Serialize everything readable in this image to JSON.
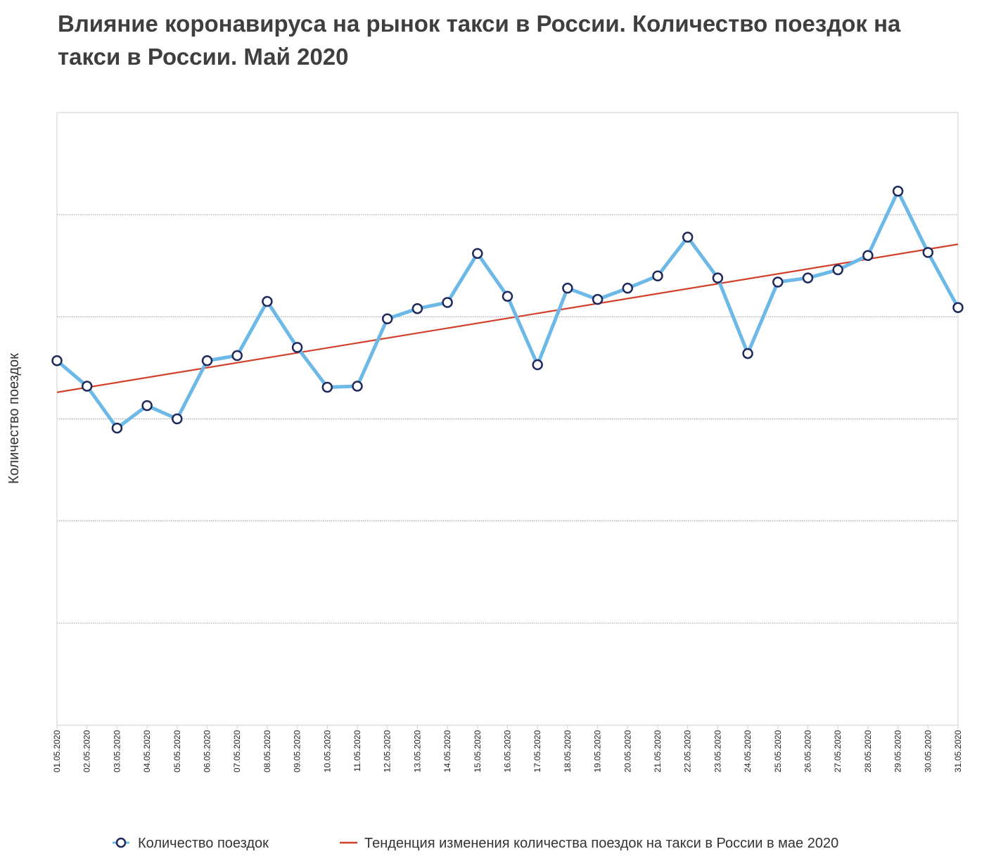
{
  "chart_data": {
    "type": "line",
    "title": "Влияние коронавируса на рынок такси в России. Количество поездок на такси в России. Май 2020",
    "xlabel": "",
    "ylabel": "Количество поездок",
    "categories": [
      "01.05.2020",
      "02.05.2020",
      "03.05.2020",
      "04.05.2020",
      "05.05.2020",
      "06.05.2020",
      "07.05.2020",
      "08.05.2020",
      "09.05.2020",
      "10.05.2020",
      "11.05.2020",
      "12.05.2020",
      "13.05.2020",
      "14.05.2020",
      "15.05.2020",
      "16.05.2020",
      "17.05.2020",
      "18.05.2020",
      "19.05.2020",
      "20.05.2020",
      "21.05.2020",
      "22.05.2020",
      "23.05.2020",
      "24.05.2020",
      "25.05.2020",
      "26.05.2020",
      "27.05.2020",
      "28.05.2020",
      "29.05.2020",
      "30.05.2020",
      "31.05.2020"
    ],
    "ylim": [
      0,
      6
    ],
    "y_gridlines": [
      1,
      2,
      3,
      4,
      5
    ],
    "grid": true,
    "legend_position": "bottom",
    "series": [
      {
        "name": "Количество поездок",
        "style": "line-with-markers",
        "color": "#6cb8e6",
        "marker_color": "#1f2a5c",
        "values": [
          3.57,
          3.32,
          2.91,
          3.13,
          3.0,
          3.57,
          3.62,
          4.15,
          3.7,
          3.31,
          3.32,
          3.98,
          4.08,
          4.14,
          4.62,
          4.2,
          3.53,
          4.28,
          4.17,
          4.28,
          4.4,
          4.78,
          4.38,
          3.64,
          4.34,
          4.38,
          4.46,
          4.6,
          5.23,
          4.63,
          4.09
        ]
      },
      {
        "name": "Тенденция изменения количества поездок на такси в России в мае 2020",
        "style": "trendline",
        "color": "#d0402a",
        "start_value": 3.26,
        "end_value": 4.71
      }
    ]
  }
}
